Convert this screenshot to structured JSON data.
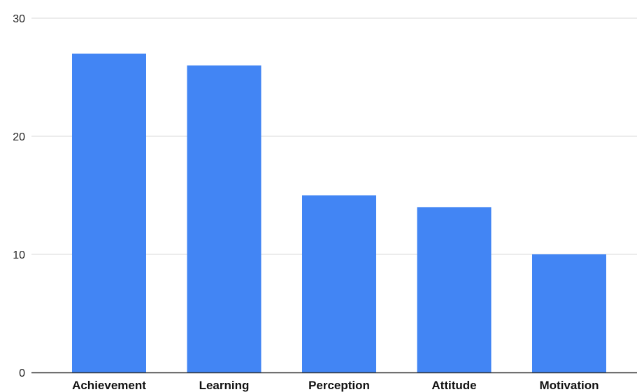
{
  "chart_data": {
    "type": "bar",
    "title": "",
    "xlabel": "",
    "ylabel": "",
    "categories": [
      "Achievement",
      "Learning",
      "Perception",
      "Attitude",
      "Motivation"
    ],
    "values": [
      27,
      26,
      15,
      14,
      10
    ],
    "ylim": [
      0,
      30
    ],
    "yticks": [
      0,
      10,
      20,
      30
    ],
    "grid": true,
    "legend": "none",
    "bar_color": "#4285f4",
    "gridline_color": "#d9d9d9",
    "baseline_color": "#333333"
  }
}
